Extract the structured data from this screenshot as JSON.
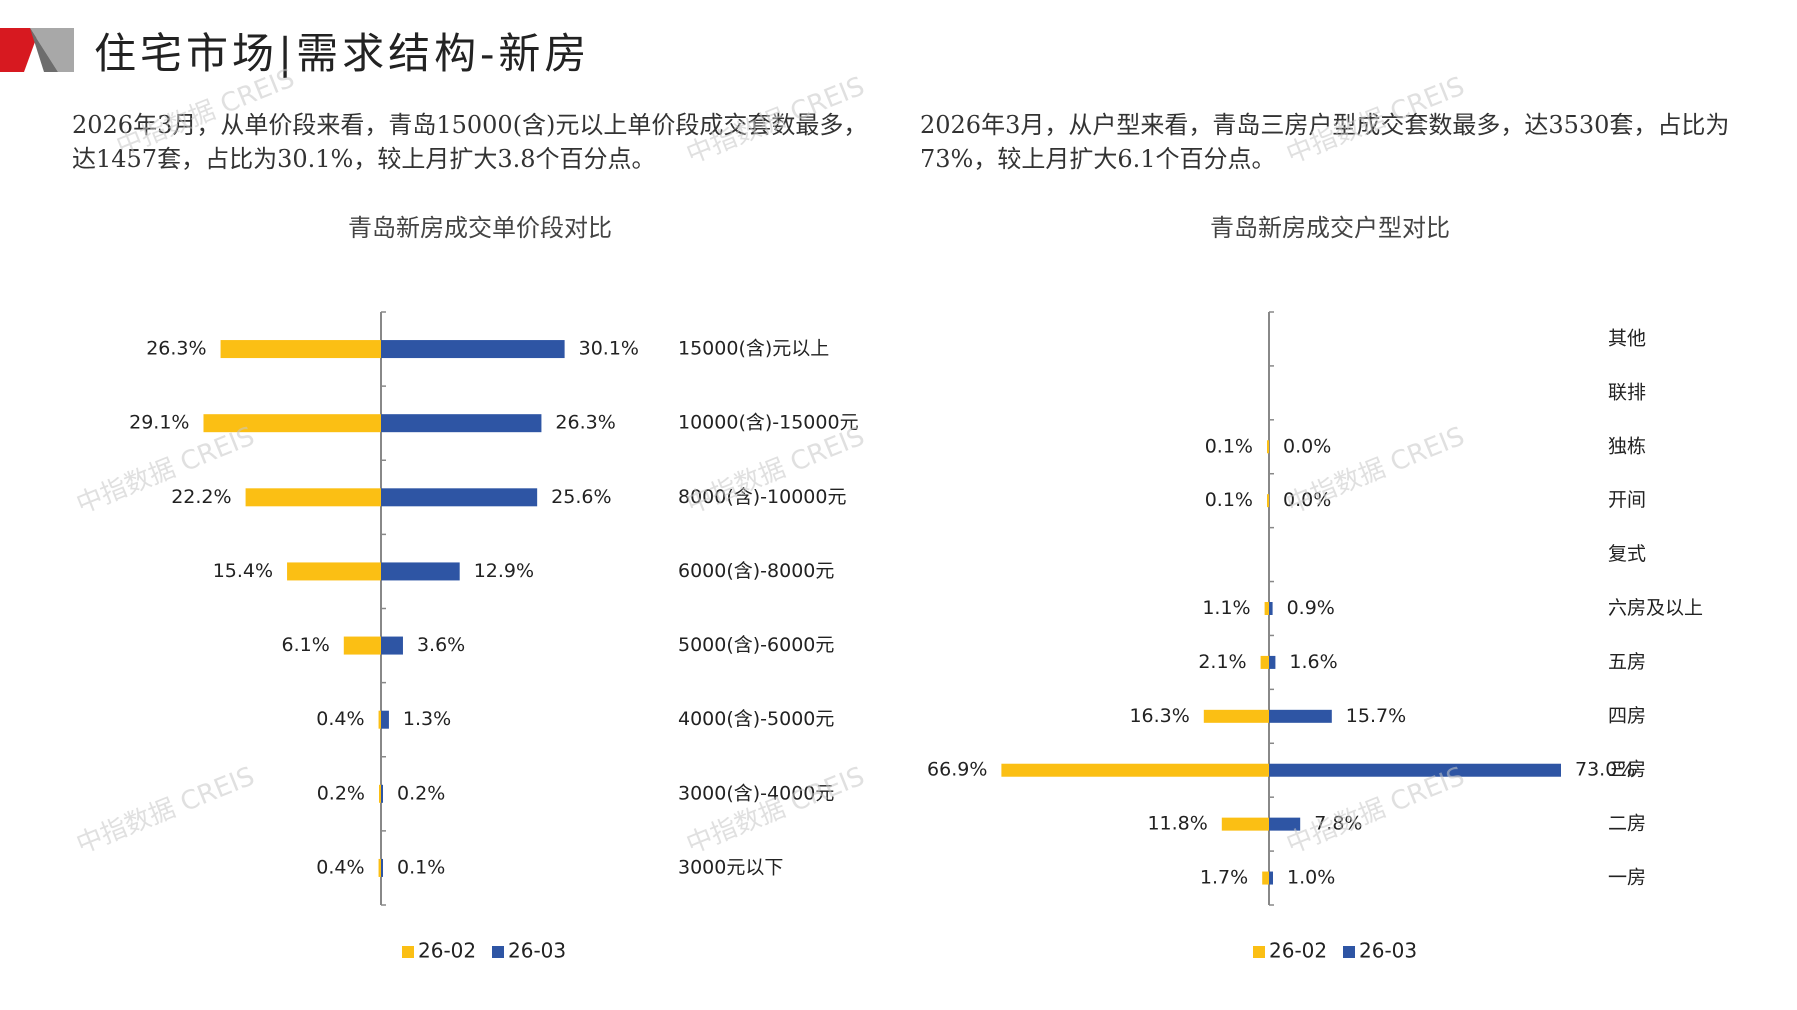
{
  "header": {
    "title": "住宅市场|需求结构-新房",
    "accent_red": "#d71920",
    "accent_grey": "#9e9e9e"
  },
  "intro_left": "2026年3月，从单价段来看，青岛15000(含)元以上单价段成交套数最多，达1457套，占比为30.1%，较上月扩大3.8个百分点。",
  "intro_right": "2026年3月，从户型来看，青岛三房户型成交套数最多，达3530套，占比为73%，较上月扩大6.1个百分点。",
  "watermark": "中指数据 CREIS",
  "colors": {
    "prev": "#fbbf14",
    "curr": "#2e55a4",
    "axis": "#888888"
  },
  "chart_data": [
    {
      "type": "bar",
      "orientation": "butterfly-horizontal",
      "title": "青岛新房成交单价段对比",
      "categories": [
        "15000(含)元以上",
        "10000(含)-15000元",
        "8000(含)-10000元",
        "6000(含)-8000元",
        "5000(含)-6000元",
        "4000(含)-5000元",
        "3000(含)-4000元",
        "3000元以下"
      ],
      "series": [
        {
          "name": "26-02",
          "values": [
            26.3,
            29.1,
            22.2,
            15.4,
            6.1,
            0.4,
            0.2,
            0.4
          ],
          "labels": [
            "26.3%",
            "29.1%",
            "22.2%",
            "15.4%",
            "6.1%",
            "0.4%",
            "0.2%",
            "0.4%"
          ]
        },
        {
          "name": "26-03",
          "values": [
            30.1,
            26.3,
            25.6,
            12.9,
            3.6,
            1.3,
            0.2,
            0.1
          ],
          "labels": [
            "30.1%",
            "26.3%",
            "25.6%",
            "12.9%",
            "3.6%",
            "1.3%",
            "0.2%",
            "0.1%"
          ]
        }
      ],
      "unit": "%",
      "legend": [
        "26-02",
        "26-03"
      ],
      "legend_position": "bottom"
    },
    {
      "type": "bar",
      "orientation": "butterfly-horizontal",
      "title": "青岛新房成交户型对比",
      "categories": [
        "其他",
        "联排",
        "独栋",
        "开间",
        "复式",
        "六房及以上",
        "五房",
        "四房",
        "三房",
        "二房",
        "一房"
      ],
      "series": [
        {
          "name": "26-02",
          "values": [
            null,
            null,
            0.1,
            0.1,
            null,
            1.1,
            2.1,
            16.3,
            66.9,
            11.8,
            1.7
          ],
          "labels": [
            "",
            "",
            "0.1%",
            "0.1%",
            "",
            "1.1%",
            "2.1%",
            "16.3%",
            "66.9%",
            "11.8%",
            "1.7%"
          ]
        },
        {
          "name": "26-03",
          "values": [
            null,
            null,
            0.0,
            0.0,
            null,
            0.9,
            1.6,
            15.7,
            73.0,
            7.8,
            1.0
          ],
          "labels": [
            "",
            "",
            "0.0%",
            "0.0%",
            "",
            "0.9%",
            "1.6%",
            "15.7%",
            "73.0%",
            "7.8%",
            "1.0%"
          ]
        }
      ],
      "unit": "%",
      "legend": [
        "26-02",
        "26-03"
      ],
      "legend_position": "bottom"
    }
  ]
}
